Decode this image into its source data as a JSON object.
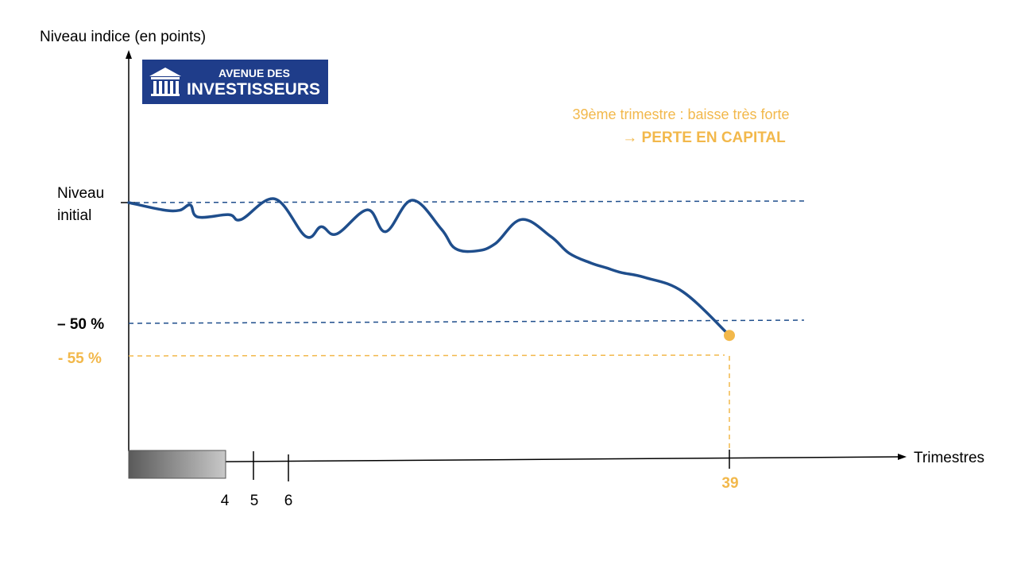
{
  "chart_data": {
    "type": "line",
    "title": "",
    "ylabel": "Niveau indice (en points)",
    "xlabel": "Trimestres",
    "y_reference": {
      "initial_label_line1": "Niveau",
      "initial_label_line2": "initial"
    },
    "levels": [
      {
        "key": "barrier",
        "label": "– 50 %",
        "value": -50,
        "color": "#1f4e8c"
      },
      {
        "key": "final",
        "label": "- 55 %",
        "value": -55,
        "color": "#f2b84b"
      }
    ],
    "x_ticks": [
      "4",
      "5",
      "6",
      "39"
    ],
    "highlight_tick": "39",
    "series": [
      {
        "color": "#1f4e8c",
        "points": [
          [
            0,
            0
          ],
          [
            2.2,
            -3
          ],
          [
            3.3,
            -3.2
          ],
          [
            4,
            -1
          ],
          [
            4.5,
            -6
          ],
          [
            6.5,
            -5
          ],
          [
            7.3,
            -7
          ],
          [
            9.5,
            1.5
          ],
          [
            11.5,
            -14
          ],
          [
            12.5,
            -10
          ],
          [
            13.5,
            -13
          ],
          [
            15.5,
            -3
          ],
          [
            16.7,
            -12
          ],
          [
            18.4,
            1
          ],
          [
            20.3,
            -11
          ],
          [
            21.2,
            -19
          ],
          [
            22.6,
            -20
          ],
          [
            23.8,
            -17
          ],
          [
            25.5,
            -7
          ],
          [
            27.4,
            -14
          ],
          [
            28.6,
            -21
          ],
          [
            30,
            -25
          ],
          [
            31,
            -27
          ],
          [
            32,
            -29
          ],
          [
            33.5,
            -31
          ],
          [
            36,
            -37
          ]
        ]
      }
    ],
    "final_point": {
      "x": 39,
      "value": -55,
      "color": "#f2b84b"
    }
  },
  "annotation": {
    "line1": "39ème trimestre : baisse très forte",
    "line2": "→ PERTE EN CAPITAL",
    "color": "#f2b84b"
  },
  "logo": {
    "text_top": "AVENUE DES",
    "text_bottom": "INVESTISSEURS",
    "bg_color": "#1f3d8a"
  },
  "colors": {
    "axis": "#000000",
    "series": "#1f4e8c",
    "highlight": "#f2b84b"
  }
}
